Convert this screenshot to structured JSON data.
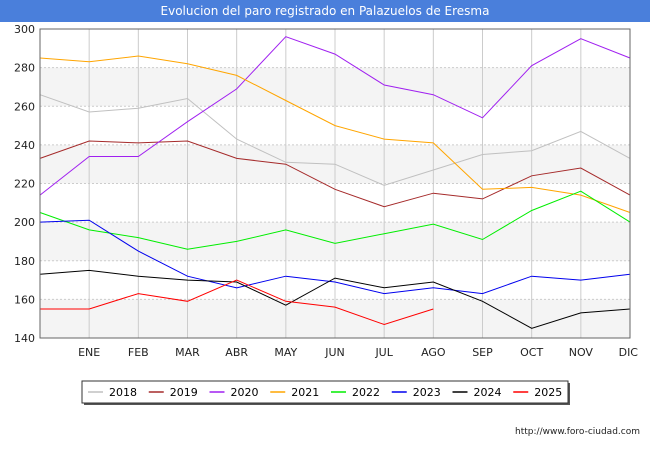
{
  "title": "Evolucion del paro registrado en Palazuelos de Eresma",
  "credit": "http://www.foro-ciudad.com",
  "chart_data": {
    "type": "line",
    "title": "Evolucion del paro registrado en Palazuelos de Eresma",
    "x_ticks": [
      "",
      "ENE",
      "FEB",
      "MAR",
      "ABR",
      "MAY",
      "JUN",
      "JUL",
      "AGO",
      "SEP",
      "OCT",
      "NOV",
      "DIC"
    ],
    "ylim": [
      140,
      300
    ],
    "y_ticks": [
      140,
      160,
      180,
      200,
      220,
      240,
      260,
      280,
      300
    ],
    "grid": true,
    "legend_position": "bottom",
    "series": [
      {
        "name": "2018",
        "color": "#c0c0c0",
        "values": [
          266,
          257,
          259,
          264,
          243,
          231,
          230,
          219,
          227,
          235,
          237,
          247,
          233
        ]
      },
      {
        "name": "2019",
        "color": "#a52a2a",
        "values": [
          233,
          242,
          241,
          242,
          233,
          230,
          217,
          208,
          215,
          212,
          224,
          228,
          214
        ]
      },
      {
        "name": "2020",
        "color": "#a020f0",
        "values": [
          214,
          234,
          234,
          252,
          269,
          296,
          287,
          271,
          266,
          254,
          281,
          295,
          285
        ]
      },
      {
        "name": "2021",
        "color": "#ffa500",
        "values": [
          285,
          283,
          286,
          282,
          276,
          263,
          250,
          243,
          241,
          217,
          218,
          214,
          205
        ]
      },
      {
        "name": "2022",
        "color": "#00ee00",
        "values": [
          205,
          196,
          192,
          186,
          190,
          196,
          189,
          194,
          199,
          191,
          206,
          216,
          200
        ]
      },
      {
        "name": "2023",
        "color": "#0000ee",
        "values": [
          200,
          201,
          185,
          172,
          166,
          172,
          169,
          163,
          166,
          163,
          172,
          170,
          173
        ]
      },
      {
        "name": "2024",
        "color": "#000000",
        "values": [
          173,
          175,
          172,
          170,
          169,
          157,
          171,
          166,
          169,
          159,
          145,
          153,
          155
        ]
      },
      {
        "name": "2025",
        "color": "#ff0000",
        "values": [
          155,
          155,
          163,
          159,
          170,
          159,
          156,
          147,
          155
        ]
      }
    ]
  }
}
